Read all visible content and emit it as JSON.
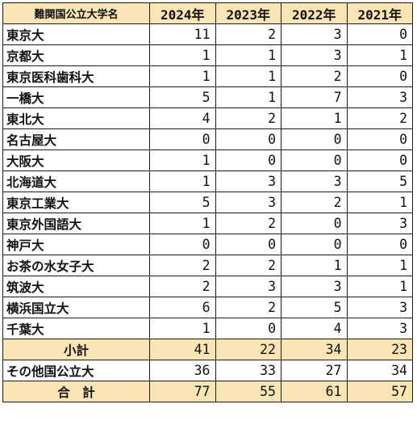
{
  "table": {
    "header": {
      "name": "難関国公立大学名",
      "years": [
        "2024年",
        "2023年",
        "2022年",
        "2021年"
      ]
    },
    "rows": [
      {
        "name": "東京大",
        "values": [
          "11",
          "2",
          "3",
          "0"
        ]
      },
      {
        "name": "京都大",
        "values": [
          "1",
          "1",
          "3",
          "1"
        ]
      },
      {
        "name": "東京医科歯科大",
        "values": [
          "1",
          "1",
          "2",
          "0"
        ]
      },
      {
        "name": "一橋大",
        "values": [
          "5",
          "1",
          "7",
          "3"
        ]
      },
      {
        "name": "東北大",
        "values": [
          "4",
          "2",
          "1",
          "2"
        ]
      },
      {
        "name": "名古屋大",
        "values": [
          "0",
          "0",
          "0",
          "0"
        ]
      },
      {
        "name": "大阪大",
        "values": [
          "1",
          "0",
          "0",
          "0"
        ]
      },
      {
        "name": "北海道大",
        "values": [
          "1",
          "3",
          "3",
          "5"
        ]
      },
      {
        "name": "東京工業大",
        "values": [
          "5",
          "3",
          "2",
          "1"
        ]
      },
      {
        "name": "東京外国語大",
        "values": [
          "1",
          "2",
          "0",
          "3"
        ]
      },
      {
        "name": "神戸大",
        "values": [
          "0",
          "0",
          "0",
          "0"
        ]
      },
      {
        "name": "お茶の水女子大",
        "values": [
          "2",
          "2",
          "1",
          "1"
        ]
      },
      {
        "name": "筑波大",
        "values": [
          "2",
          "3",
          "3",
          "1"
        ]
      },
      {
        "name": "横浜国立大",
        "values": [
          "6",
          "2",
          "5",
          "3"
        ]
      },
      {
        "name": "千葉大",
        "values": [
          "1",
          "0",
          "4",
          "3"
        ]
      }
    ],
    "subtotal": {
      "name": "小計",
      "values": [
        "41",
        "22",
        "34",
        "23"
      ]
    },
    "other": {
      "name": "その他国公立大",
      "values": [
        "36",
        "33",
        "27",
        "34"
      ]
    },
    "total": {
      "name": "合　計",
      "values": [
        "77",
        "55",
        "61",
        "57"
      ]
    }
  },
  "colors": {
    "header_fill": "#fbe5b5",
    "border": "#1a1a1a"
  }
}
